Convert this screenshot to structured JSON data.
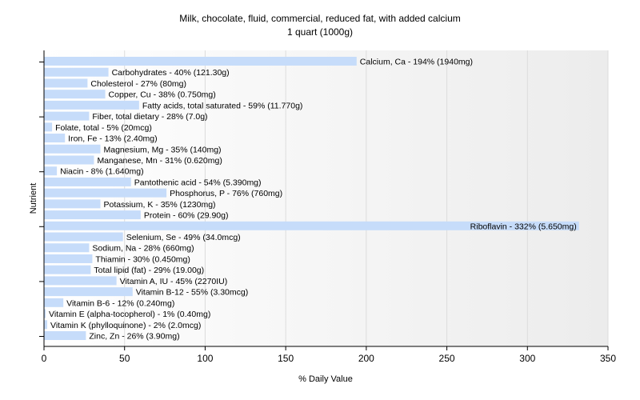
{
  "chart_data": {
    "type": "bar",
    "orientation": "horizontal",
    "title": "Milk, chocolate, fluid, commercial, reduced fat, with added calcium",
    "subtitle": "1 quart (1000g)",
    "xlabel": "% Daily Value",
    "ylabel": "Nutrient",
    "xlim": [
      0,
      350
    ],
    "xticks": [
      "0",
      "50",
      "100",
      "150",
      "200",
      "250",
      "300",
      "350"
    ],
    "grid": true,
    "bar_color": "#c6dcfa",
    "categories": [
      "Calcium, Ca",
      "Carbohydrates",
      "Cholesterol",
      "Copper, Cu",
      "Fatty acids, total saturated",
      "Fiber, total dietary",
      "Folate, total",
      "Iron, Fe",
      "Magnesium, Mg",
      "Manganese, Mn",
      "Niacin",
      "Pantothenic acid",
      "Phosphorus, P",
      "Potassium, K",
      "Protein",
      "Riboflavin",
      "Selenium, Se",
      "Sodium, Na",
      "Thiamin",
      "Total lipid (fat)",
      "Vitamin A, IU",
      "Vitamin B-12",
      "Vitamin B-6",
      "Vitamin E (alpha-tocopherol)",
      "Vitamin K (phylloquinone)",
      "Zinc, Zn"
    ],
    "values": [
      194,
      40,
      27,
      38,
      59,
      28,
      5,
      13,
      35,
      31,
      8,
      54,
      76,
      35,
      60,
      332,
      49,
      28,
      30,
      29,
      45,
      55,
      12,
      1,
      2,
      26
    ],
    "labels": [
      "Calcium, Ca - 194% (1940mg)",
      "Carbohydrates - 40% (121.30g)",
      "Cholesterol - 27% (80mg)",
      "Copper, Cu - 38% (0.750mg)",
      "Fatty acids, total saturated - 59% (11.770g)",
      "Fiber, total dietary - 28% (7.0g)",
      "Folate, total - 5% (20mcg)",
      "Iron, Fe - 13% (2.40mg)",
      "Magnesium, Mg - 35% (140mg)",
      "Manganese, Mn - 31% (0.620mg)",
      "Niacin - 8% (1.640mg)",
      "Pantothenic acid - 54% (5.390mg)",
      "Phosphorus, P - 76% (760mg)",
      "Potassium, K - 35% (1230mg)",
      "Protein - 60% (29.90g)",
      "Riboflavin - 332% (5.650mg)",
      "Selenium, Se - 49% (34.0mcg)",
      "Sodium, Na - 28% (660mg)",
      "Thiamin - 30% (0.450mg)",
      "Total lipid (fat) - 29% (19.00g)",
      "Vitamin A, IU - 45% (2270IU)",
      "Vitamin B-12 - 55% (3.30mcg)",
      "Vitamin B-6 - 12% (0.240mg)",
      "Vitamin E (alpha-tocopherol) - 1% (0.40mg)",
      "Vitamin K (phylloquinone) - 2% (2.0mcg)",
      "Zinc, Zn - 26% (3.90mg)"
    ]
  }
}
